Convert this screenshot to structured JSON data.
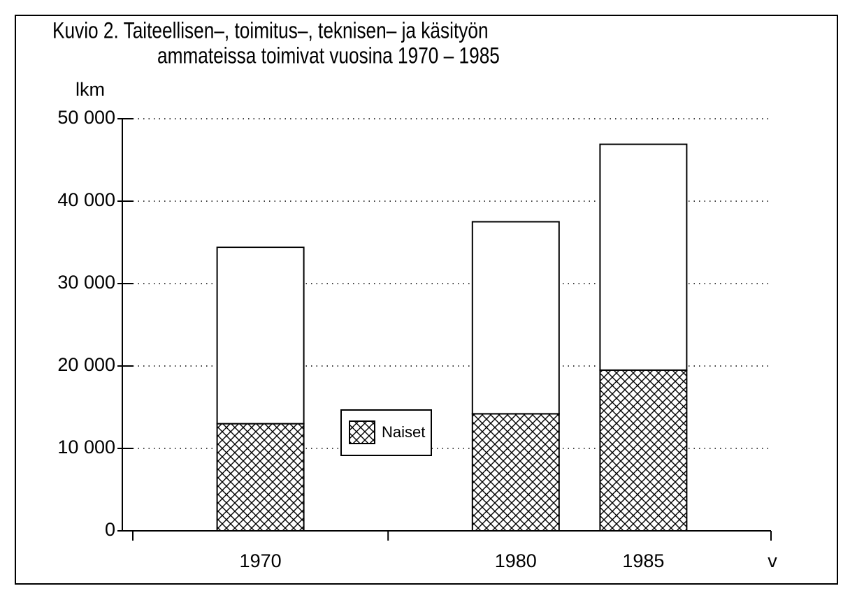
{
  "chart_data": {
    "type": "stacked_bar",
    "title": [
      "Kuvio 2. Taiteellisen–, toimitus–, teknisen– ja käsityön",
      "ammateissa toimivat vuosina 1970 – 1985"
    ],
    "y_label": "lkm",
    "x_label": "v",
    "x": [
      1970,
      1980,
      1985
    ],
    "xlim": [
      1965,
      1990
    ],
    "xticks": [
      1965,
      1975,
      1990
    ],
    "series": [
      {
        "name": "Naiset",
        "color": "#000000",
        "values": [
          13000,
          14200,
          19500
        ]
      },
      {
        "color": "#ffffff",
        "values": [
          21400,
          23300,
          27400
        ]
      }
    ],
    "ylim": [
      0,
      50000
    ],
    "yticks": [
      0,
      {
        "value": 10000,
        "label": "10 000"
      },
      {
        "value": 20000,
        "label": "20 000"
      },
      {
        "value": 30000,
        "label": "30 000"
      },
      {
        "value": 40000,
        "label": "40 000"
      },
      {
        "value": 50000,
        "label": "50 000"
      }
    ],
    "grid": true
  }
}
